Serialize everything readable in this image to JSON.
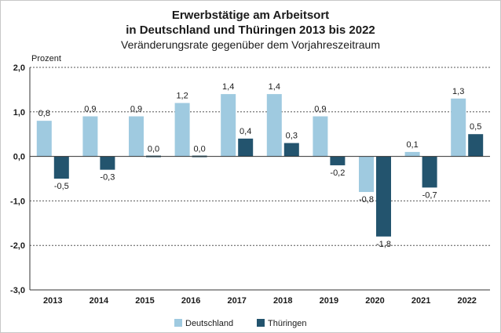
{
  "chart_data": {
    "type": "bar",
    "title_line1": "Erwerbstätige am Arbeitsort",
    "title_line2": "in Deutschland und Thüringen 2013 bis 2022",
    "subtitle": "Veränderungsrate gegenüber dem Vorjahreszeitraum",
    "ylabel": "Prozent",
    "xlabel": "",
    "ylim": [
      -3.0,
      2.0
    ],
    "yticks": [
      2.0,
      1.0,
      0.0,
      -1.0,
      -2.0,
      -3.0
    ],
    "ytick_labels": [
      "2,0",
      "1,0",
      "0,0",
      "-1,0",
      "-2,0",
      "-3,0"
    ],
    "grid": "dashed horizontal at tick values",
    "legend_position": "bottom-center",
    "categories": [
      "2013",
      "2014",
      "2015",
      "2016",
      "2017",
      "2018",
      "2019",
      "2020",
      "2021",
      "2022"
    ],
    "series": [
      {
        "name": "Deutschland",
        "color": "#9fcae0",
        "values": [
          0.8,
          0.9,
          0.9,
          1.2,
          1.4,
          1.4,
          0.9,
          -0.8,
          0.1,
          1.3
        ],
        "labels": [
          "0,8",
          "0,9",
          "0,9",
          "1,2",
          "1,4",
          "1,4",
          "0,9",
          "-0,8",
          "0,1",
          "1,3"
        ]
      },
      {
        "name": "Thüringen",
        "color": "#23546e",
        "values": [
          -0.5,
          -0.3,
          0.0,
          0.0,
          0.4,
          0.3,
          -0.2,
          -1.8,
          -0.7,
          0.5
        ],
        "labels": [
          "-0,5",
          "-0,3",
          "0,0",
          "0,0",
          "0,4",
          "0,3",
          "-0,2",
          "-1,8",
          "-0,7",
          "0,5"
        ]
      }
    ]
  }
}
